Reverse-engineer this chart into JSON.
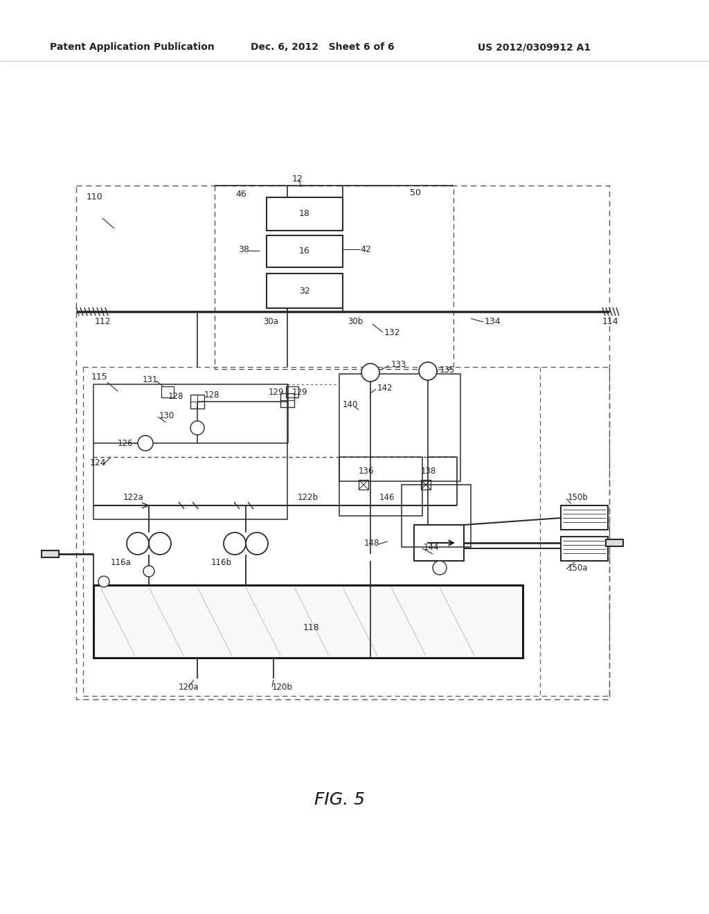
{
  "bg": "#ffffff",
  "lc": "#2a2a2a",
  "header_left": "Patent Application Publication",
  "header_mid": "Dec. 6, 2012   Sheet 6 of 6",
  "header_right": "US 2012/0309912 A1",
  "fig_label": "FIG. 5"
}
